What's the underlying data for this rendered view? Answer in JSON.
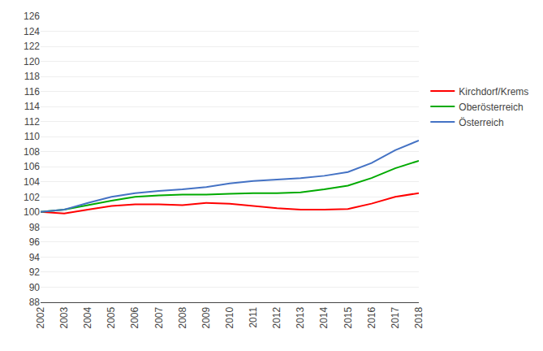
{
  "chart_data": {
    "type": "line",
    "x": [
      2002,
      2003,
      2004,
      2005,
      2006,
      2007,
      2008,
      2009,
      2010,
      2011,
      2012,
      2013,
      2014,
      2015,
      2016,
      2017,
      2018
    ],
    "series": [
      {
        "name": "Kirchdorf/Krems",
        "color": "#ff0000",
        "values": [
          100.0,
          99.8,
          100.3,
          100.8,
          101.0,
          101.0,
          100.9,
          101.2,
          101.1,
          100.8,
          100.5,
          100.3,
          100.3,
          100.4,
          101.1,
          102.0,
          102.5
        ]
      },
      {
        "name": "Oberösterreich",
        "color": "#00aa00",
        "values": [
          100.0,
          100.3,
          100.9,
          101.5,
          102.0,
          102.2,
          102.3,
          102.3,
          102.4,
          102.5,
          102.5,
          102.6,
          103.0,
          103.5,
          104.5,
          105.8,
          106.8
        ]
      },
      {
        "name": "Österreich",
        "color": "#4472c4",
        "values": [
          100.0,
          100.3,
          101.2,
          102.0,
          102.5,
          102.8,
          103.0,
          103.3,
          103.8,
          104.1,
          104.3,
          104.5,
          104.8,
          105.3,
          106.5,
          108.2,
          109.5
        ]
      }
    ],
    "xlim": [
      2002,
      2018
    ],
    "xticks": [
      2002,
      2003,
      2004,
      2005,
      2006,
      2007,
      2008,
      2009,
      2010,
      2011,
      2012,
      2013,
      2014,
      2015,
      2016,
      2017,
      2018
    ],
    "ylim": [
      88,
      126
    ],
    "yticks": [
      88,
      90,
      92,
      94,
      96,
      98,
      100,
      102,
      104,
      106,
      108,
      110,
      112,
      114,
      116,
      118,
      120,
      122,
      124,
      126
    ],
    "grid": true,
    "legend": "right"
  }
}
